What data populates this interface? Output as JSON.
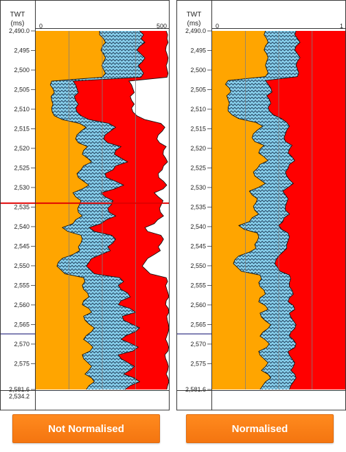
{
  "colors": {
    "orange": "#FFA500",
    "cyan": "#87CEEB",
    "red": "#FF0000",
    "grid": "#7F7F7F",
    "marker_red": "#E00000",
    "marker_navy": "#1F1F7A"
  },
  "chart_data": [
    {
      "type": "area",
      "depth_header": "TWT\n(ms)",
      "xlim": [
        0,
        500
      ],
      "x_ticks": [
        "0",
        "500"
      ],
      "ylim": [
        2490.0,
        2581.6
      ],
      "y_ticks": [
        "2,490.0",
        "2,495",
        "2,500",
        "2,505",
        "2,510",
        "2,515",
        "2,520",
        "2,525",
        "2,530",
        "2,535",
        "2,540",
        "2,545",
        "2,550",
        "2,555",
        "2,560",
        "2,565",
        "2,570",
        "2,575",
        "2,581.6"
      ],
      "footer_value": "2,534.2",
      "markers": [
        {
          "depth": 2534.0,
          "color": "red"
        },
        {
          "depth": 2567.4,
          "color": "navy"
        }
      ],
      "series": [
        {
          "fill": "orange",
          "values": [
            0,
            0,
            0,
            0,
            0,
            0,
            0,
            0,
            0,
            0,
            0,
            0,
            0,
            0,
            0,
            0,
            0,
            0,
            0,
            0,
            0,
            0,
            0,
            0,
            0,
            0,
            0,
            0,
            0,
            0,
            0,
            0,
            0,
            0,
            0,
            0,
            0,
            0,
            0,
            0,
            0,
            0,
            0,
            0,
            0,
            0,
            0,
            0,
            0,
            0,
            0,
            0,
            0,
            0,
            0,
            0,
            0,
            0,
            0,
            0,
            0,
            0,
            0,
            0,
            0,
            0,
            0,
            0,
            0,
            0,
            0,
            0,
            0,
            0,
            0,
            0,
            0,
            0,
            0,
            0,
            0,
            0,
            0,
            0,
            0,
            0,
            0,
            0,
            0,
            0,
            0,
            0,
            0,
            0
          ]
        },
        {
          "fill": "cyan",
          "values": [
            240,
            240,
            255,
            262,
            250,
            245,
            255,
            262,
            255,
            248,
            255,
            262,
            250,
            60,
            55,
            65,
            70,
            58,
            60,
            65,
            60,
            62,
            70,
            100,
            165,
            190,
            170,
            155,
            150,
            160,
            195,
            180,
            175,
            195,
            210,
            180,
            170,
            155,
            160,
            180,
            200,
            175,
            140,
            150,
            170,
            165,
            158,
            160,
            175,
            150,
            140,
            100,
            120,
            170,
            175,
            170,
            160,
            165,
            140,
            100,
            85,
            80,
            95,
            110,
            180,
            185,
            175,
            180,
            195,
            200,
            180,
            175,
            200,
            210,
            180,
            185,
            200,
            220,
            210,
            190,
            180,
            200,
            215,
            205,
            175,
            180,
            195,
            210,
            200,
            185,
            210,
            220,
            200,
            190,
            180
          ]
        },
        {
          "fill": "red",
          "values": [
            390,
            405,
            395,
            410,
            390,
            380,
            395,
            410,
            400,
            385,
            395,
            405,
            395,
            140,
            150,
            155,
            160,
            145,
            150,
            160,
            150,
            155,
            170,
            200,
            275,
            300,
            280,
            260,
            255,
            270,
            320,
            300,
            295,
            320,
            345,
            300,
            290,
            260,
            265,
            300,
            330,
            295,
            245,
            260,
            290,
            285,
            270,
            275,
            300,
            265,
            245,
            200,
            220,
            285,
            300,
            290,
            270,
            280,
            245,
            210,
            200,
            190,
            205,
            220,
            315,
            330,
            310,
            320,
            345,
            355,
            320,
            310,
            355,
            375,
            325,
            330,
            360,
            390,
            375,
            340,
            320,
            355,
            385,
            365,
            310,
            320,
            345,
            370,
            355,
            330,
            370,
            390,
            355,
            335,
            320
          ]
        },
        {
          "fill": "white",
          "values": [
            490,
            495,
            493,
            497,
            490,
            488,
            493,
            497,
            495,
            490,
            493,
            497,
            493,
            350,
            360,
            365,
            370,
            355,
            360,
            370,
            360,
            365,
            380,
            410,
            470,
            485,
            475,
            460,
            455,
            465,
            490,
            480,
            478,
            488,
            495,
            480,
            475,
            460,
            462,
            480,
            492,
            478,
            445,
            460,
            478,
            472,
            465,
            468,
            480,
            458,
            445,
            410,
            420,
            470,
            480,
            472,
            460,
            468,
            445,
            420,
            410,
            400,
            415,
            430,
            490,
            495,
            488,
            492,
            497,
            500,
            490,
            488,
            498,
            500,
            492,
            494,
            498,
            500,
            498,
            493,
            488,
            495,
            499,
            497,
            485,
            488,
            494,
            498,
            496,
            490,
            497,
            500,
            495,
            492,
            488
          ]
        }
      ]
    },
    {
      "type": "area",
      "depth_header": "TWT\n(ms)",
      "xlim": [
        0,
        1
      ],
      "x_ticks": [
        "0",
        "1"
      ],
      "ylim": [
        2490.0,
        2581.6
      ],
      "y_ticks": [
        "2,490.0",
        "2,495",
        "2,500",
        "2,505",
        "2,510",
        "2,515",
        "2,520",
        "2,525",
        "2,530",
        "2,535",
        "2,540",
        "2,545",
        "2,550",
        "2,555",
        "2,560",
        "2,565",
        "2,570",
        "2,575",
        "2,581.6"
      ],
      "footer_value": "",
      "markers": [
        {
          "depth": 2567.4,
          "color": "navy"
        }
      ],
      "series": [
        {
          "fill": "orange",
          "values": [
            0,
            0,
            0,
            0,
            0,
            0,
            0,
            0,
            0,
            0,
            0,
            0,
            0,
            0,
            0,
            0,
            0,
            0,
            0,
            0,
            0,
            0,
            0,
            0,
            0,
            0,
            0,
            0,
            0,
            0,
            0,
            0,
            0,
            0,
            0,
            0,
            0,
            0,
            0,
            0,
            0,
            0,
            0,
            0,
            0,
            0,
            0,
            0,
            0,
            0,
            0,
            0,
            0,
            0,
            0,
            0,
            0,
            0,
            0,
            0,
            0,
            0,
            0,
            0,
            0,
            0,
            0,
            0,
            0,
            0,
            0,
            0,
            0,
            0,
            0,
            0,
            0,
            0,
            0,
            0,
            0,
            0,
            0,
            0,
            0,
            0,
            0,
            0,
            0,
            0,
            0,
            0,
            0,
            0,
            0
          ]
        },
        {
          "fill": "cyan",
          "values": [
            0.4,
            0.39,
            0.41,
            0.42,
            0.4,
            0.39,
            0.41,
            0.42,
            0.41,
            0.4,
            0.41,
            0.42,
            0.4,
            0.12,
            0.1,
            0.13,
            0.14,
            0.11,
            0.12,
            0.13,
            0.12,
            0.12,
            0.15,
            0.2,
            0.33,
            0.38,
            0.34,
            0.31,
            0.3,
            0.32,
            0.39,
            0.36,
            0.35,
            0.39,
            0.42,
            0.36,
            0.34,
            0.31,
            0.32,
            0.36,
            0.4,
            0.35,
            0.28,
            0.3,
            0.34,
            0.33,
            0.31,
            0.32,
            0.35,
            0.3,
            0.28,
            0.2,
            0.24,
            0.34,
            0.35,
            0.34,
            0.32,
            0.33,
            0.28,
            0.2,
            0.17,
            0.16,
            0.19,
            0.22,
            0.36,
            0.37,
            0.35,
            0.36,
            0.39,
            0.4,
            0.36,
            0.35,
            0.4,
            0.42,
            0.36,
            0.37,
            0.4,
            0.44,
            0.42,
            0.38,
            0.36,
            0.4,
            0.43,
            0.41,
            0.35,
            0.36,
            0.39,
            0.42,
            0.4,
            0.37,
            0.42,
            0.44,
            0.4,
            0.38,
            0.36
          ]
        },
        {
          "fill": "red",
          "values": [
            0.63,
            0.62,
            0.64,
            0.66,
            0.63,
            0.62,
            0.64,
            0.66,
            0.64,
            0.63,
            0.64,
            0.65,
            0.64,
            0.4,
            0.42,
            0.44,
            0.45,
            0.41,
            0.43,
            0.44,
            0.42,
            0.43,
            0.46,
            0.52,
            0.56,
            0.58,
            0.56,
            0.55,
            0.54,
            0.55,
            0.6,
            0.58,
            0.57,
            0.6,
            0.62,
            0.58,
            0.57,
            0.55,
            0.56,
            0.58,
            0.61,
            0.57,
            0.53,
            0.55,
            0.57,
            0.56,
            0.55,
            0.55,
            0.58,
            0.54,
            0.53,
            0.5,
            0.52,
            0.57,
            0.58,
            0.57,
            0.56,
            0.56,
            0.53,
            0.5,
            0.48,
            0.47,
            0.49,
            0.51,
            0.58,
            0.59,
            0.58,
            0.58,
            0.6,
            0.61,
            0.58,
            0.57,
            0.61,
            0.62,
            0.58,
            0.59,
            0.61,
            0.63,
            0.62,
            0.59,
            0.58,
            0.61,
            0.63,
            0.62,
            0.57,
            0.58,
            0.6,
            0.62,
            0.61,
            0.59,
            0.62,
            0.63,
            0.61,
            0.59,
            0.58
          ]
        },
        {
          "fill": "white",
          "values": [
            1,
            1,
            1,
            1,
            1,
            1,
            1,
            1,
            1,
            1,
            1,
            1,
            1,
            1,
            1,
            1,
            1,
            1,
            1,
            1,
            1,
            1,
            1,
            1,
            1,
            1,
            1,
            1,
            1,
            1,
            1,
            1,
            1,
            1,
            1,
            1,
            1,
            1,
            1,
            1,
            1,
            1,
            1,
            1,
            1,
            1,
            1,
            1,
            1,
            1,
            1,
            1,
            1,
            1,
            1,
            1,
            1,
            1,
            1,
            1,
            1,
            1,
            1,
            1,
            1,
            1,
            1,
            1,
            1,
            1,
            1,
            1,
            1,
            1,
            1,
            1,
            1,
            1,
            1,
            1,
            1,
            1,
            1,
            1,
            1,
            1,
            1,
            1,
            1,
            1,
            1,
            1,
            1,
            1,
            1
          ]
        }
      ]
    }
  ],
  "buttons": {
    "not_normalised": "Not Normalised",
    "normalised": "Normalised"
  }
}
